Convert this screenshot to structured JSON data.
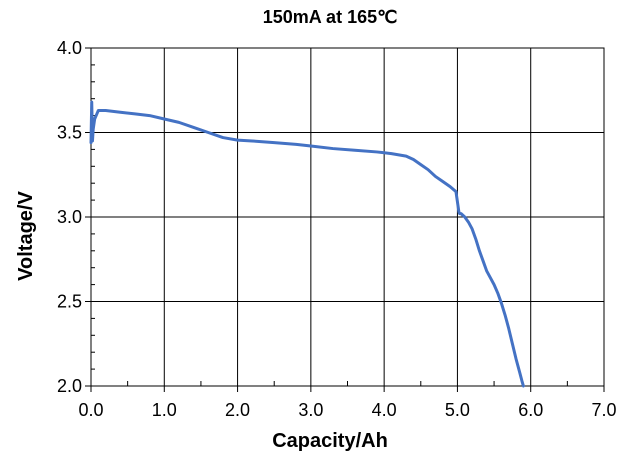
{
  "chart_data": {
    "type": "line",
    "title": "150mA at 165℃",
    "xlabel": "Capacity/Ah",
    "ylabel": "Voltage/V",
    "xlim": [
      0,
      7
    ],
    "ylim": [
      2,
      4
    ],
    "x_ticks": [
      "0.0",
      "1.0",
      "2.0",
      "3.0",
      "4.0",
      "5.0",
      "6.0",
      "7.0"
    ],
    "y_ticks": [
      "2.0",
      "2.5",
      "3.0",
      "3.5",
      "4.0"
    ],
    "grid": true,
    "legend": "none",
    "series_color": "#4472C4",
    "series": [
      {
        "x": [
          0.0,
          0.01,
          0.02,
          0.03,
          0.05,
          0.08,
          0.1,
          0.2,
          0.4,
          0.6,
          0.8,
          1.0,
          1.2,
          1.4,
          1.6,
          1.8,
          2.0,
          2.2,
          2.5,
          2.8,
          3.0,
          3.3,
          3.6,
          3.9,
          4.1,
          4.3,
          4.4,
          4.5,
          4.6,
          4.7,
          4.8,
          4.9,
          4.98,
          5.0,
          5.02,
          5.03,
          5.05,
          5.1,
          5.15,
          5.2,
          5.25,
          5.3,
          5.35,
          5.4,
          5.45,
          5.5,
          5.55,
          5.6,
          5.65,
          5.7,
          5.75,
          5.8,
          5.85,
          5.88,
          5.9
        ],
        "y": [
          3.44,
          3.68,
          3.45,
          3.52,
          3.58,
          3.61,
          3.63,
          3.63,
          3.62,
          3.61,
          3.6,
          3.58,
          3.56,
          3.53,
          3.5,
          3.47,
          3.455,
          3.45,
          3.44,
          3.43,
          3.42,
          3.405,
          3.395,
          3.385,
          3.375,
          3.36,
          3.34,
          3.31,
          3.28,
          3.24,
          3.21,
          3.18,
          3.15,
          3.09,
          3.03,
          3.02,
          3.02,
          3.0,
          2.97,
          2.93,
          2.87,
          2.8,
          2.74,
          2.68,
          2.64,
          2.6,
          2.55,
          2.49,
          2.42,
          2.34,
          2.25,
          2.16,
          2.08,
          2.03,
          2.0
        ]
      }
    ]
  }
}
